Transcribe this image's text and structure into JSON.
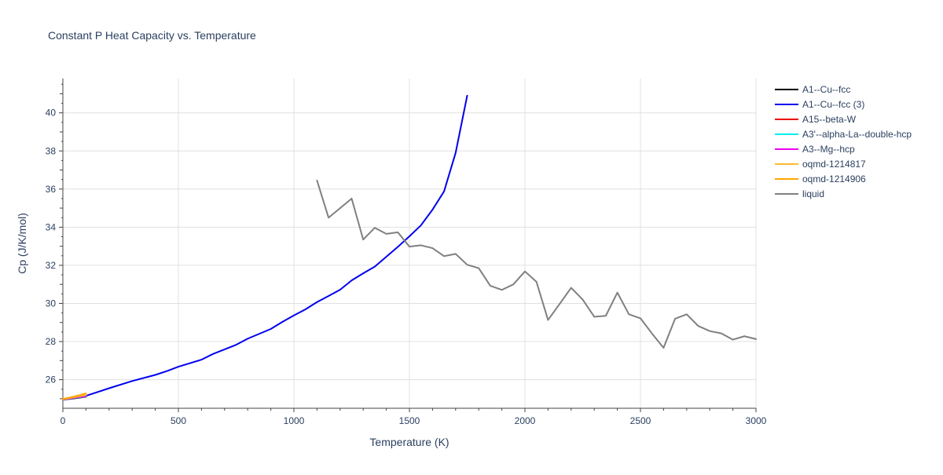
{
  "chart_data": {
    "type": "line",
    "title": "Constant P Heat Capacity vs. Temperature",
    "xlabel": "Temperature (K)",
    "ylabel": "Cp (J/K/mol)",
    "xlim": [
      0,
      3000
    ],
    "ylim": [
      24.5,
      41.8
    ],
    "xticks": [
      0,
      500,
      1000,
      1500,
      2000,
      2500,
      3000
    ],
    "yticks": [
      26,
      28,
      30,
      32,
      34,
      36,
      38,
      40
    ],
    "grid": true,
    "legend_position": "top-right",
    "series": [
      {
        "name": "A1--Cu--fcc",
        "color": "#000000",
        "x": [
          0,
          50,
          100
        ],
        "y": [
          24.95,
          25.02,
          25.1
        ]
      },
      {
        "name": "A1--Cu--fcc (3)",
        "color": "#0000ee",
        "x": [
          0,
          100,
          200,
          300,
          400,
          450,
          500,
          600,
          650,
          750,
          800,
          900,
          950,
          1000,
          1050,
          1100,
          1150,
          1200,
          1250,
          1300,
          1350,
          1400,
          1450,
          1500,
          1550,
          1600,
          1650,
          1700,
          1750
        ],
        "y": [
          24.95,
          25.15,
          25.55,
          25.93,
          26.25,
          26.45,
          26.68,
          27.05,
          27.35,
          27.83,
          28.15,
          28.66,
          29.03,
          29.37,
          29.69,
          30.07,
          30.39,
          30.72,
          31.21,
          31.58,
          31.93,
          32.45,
          32.97,
          33.52,
          34.1,
          34.92,
          35.88,
          37.9,
          40.9
        ]
      },
      {
        "name": "A15--beta-W",
        "color": "#ee0000",
        "x": [
          0,
          50,
          100
        ],
        "y": [
          24.98,
          25.05,
          25.12
        ]
      },
      {
        "name": "A3'--alpha-La--double-hcp",
        "color": "#00eeee",
        "x": [
          0,
          50,
          100
        ],
        "y": [
          24.96,
          25.04,
          25.12
        ]
      },
      {
        "name": "A3--Mg--hcp",
        "color": "#ee00ee",
        "x": [
          0,
          50,
          100
        ],
        "y": [
          24.96,
          25.05,
          25.14
        ]
      },
      {
        "name": "oqmd-1214817",
        "color": "#ffbb33",
        "x": [
          0,
          50,
          100
        ],
        "y": [
          24.97,
          25.08,
          25.2
        ]
      },
      {
        "name": "oqmd-1214906",
        "color": "#ffa500",
        "x": [
          0,
          50,
          100
        ],
        "y": [
          24.99,
          25.12,
          25.28
        ]
      },
      {
        "name": "liquid",
        "color": "#808080",
        "x": [
          1100,
          1150,
          1250,
          1300,
          1350,
          1400,
          1450,
          1500,
          1550,
          1600,
          1650,
          1700,
          1750,
          1800,
          1850,
          1900,
          1950,
          2000,
          2050,
          2100,
          2150,
          2200,
          2250,
          2300,
          2350,
          2400,
          2450,
          2500,
          2550,
          2600,
          2650,
          2700,
          2750,
          2800,
          2850,
          2900,
          2950,
          3000
        ],
        "y": [
          36.45,
          34.5,
          35.5,
          33.35,
          33.97,
          33.65,
          33.73,
          32.98,
          33.05,
          32.9,
          32.48,
          32.6,
          32.03,
          31.85,
          30.93,
          30.71,
          31.0,
          31.68,
          31.13,
          29.13,
          29.97,
          30.82,
          30.2,
          29.3,
          29.35,
          30.57,
          29.43,
          29.22,
          28.42,
          27.67,
          29.2,
          29.43,
          28.82,
          28.55,
          28.43,
          28.1,
          28.28,
          28.13
        ]
      }
    ]
  }
}
